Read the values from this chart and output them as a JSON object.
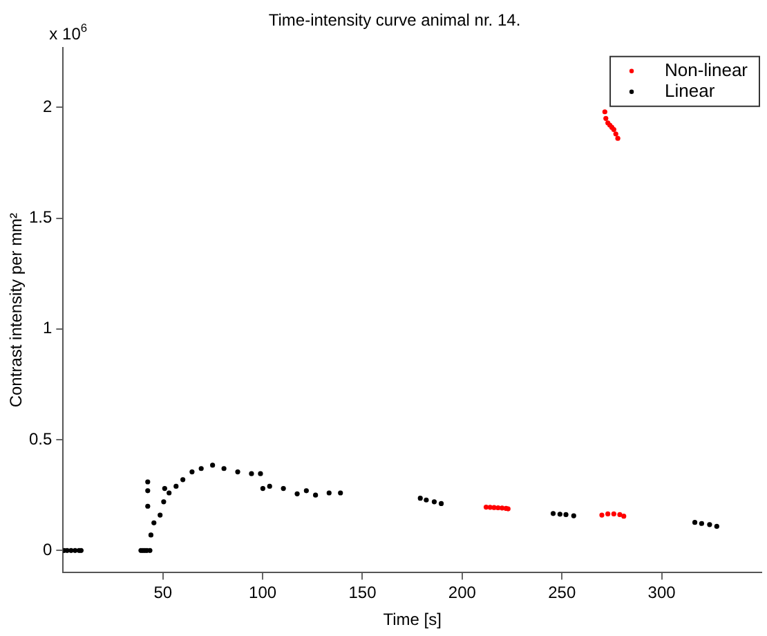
{
  "chart_data": {
    "type": "scatter",
    "title": "Time-intensity curve animal nr. 14.",
    "xlabel": "Time [s]",
    "ylabel": "Contrast intensity per mm²",
    "annotations": [
      "x 10$^{6}$"
    ],
    "xlim": [
      0,
      350
    ],
    "xticks": [
      50,
      100,
      150,
      200,
      250,
      300
    ],
    "ylim": [
      -0.1,
      2.27
    ],
    "yticks": [
      0,
      0.5,
      1,
      1.5,
      2
    ],
    "grid": false,
    "legend": "top right",
    "marker": "circle",
    "series": [
      {
        "name": "Non-linear",
        "color": "#ff0000",
        "x": [
          212,
          214,
          216,
          218,
          220,
          222,
          223,
          270,
          273,
          276,
          279,
          281,
          271.5,
          272,
          273,
          274,
          275,
          276,
          277,
          278
        ],
        "values": [
          0.196,
          0.195,
          0.194,
          0.193,
          0.192,
          0.19,
          0.188,
          0.16,
          0.165,
          0.165,
          0.162,
          0.155,
          1.98,
          1.95,
          1.93,
          1.92,
          1.91,
          1.9,
          1.88,
          1.86
        ]
      },
      {
        "name": "Linear",
        "color": "#000000",
        "x": [
          0.5,
          2,
          4,
          6,
          8,
          9,
          39,
          40,
          41,
          42,
          42.4,
          42.4,
          42.4,
          43.5,
          44,
          45.5,
          48.6,
          50.4,
          50.9,
          53.1,
          56.6,
          60,
          64.6,
          69.2,
          74.9,
          80.6,
          87.5,
          94.4,
          98.9,
          100.1,
          103.5,
          110.4,
          117.3,
          121.9,
          126.5,
          133.3,
          139,
          179,
          182,
          186,
          189.5,
          245.6,
          249,
          252,
          255.9,
          316.6,
          320,
          324,
          327.6
        ],
        "values": [
          0,
          0,
          0,
          0,
          0,
          0,
          0,
          0,
          0,
          0,
          0.31,
          0.27,
          0.2,
          0,
          0.07,
          0.125,
          0.16,
          0.22,
          0.28,
          0.26,
          0.29,
          0.32,
          0.355,
          0.37,
          0.385,
          0.37,
          0.355,
          0.347,
          0.347,
          0.28,
          0.29,
          0.28,
          0.256,
          0.27,
          0.25,
          0.26,
          0.26,
          0.236,
          0.228,
          0.22,
          0.212,
          0.167,
          0.164,
          0.162,
          0.157,
          0.127,
          0.122,
          0.117,
          0.109
        ]
      }
    ]
  }
}
